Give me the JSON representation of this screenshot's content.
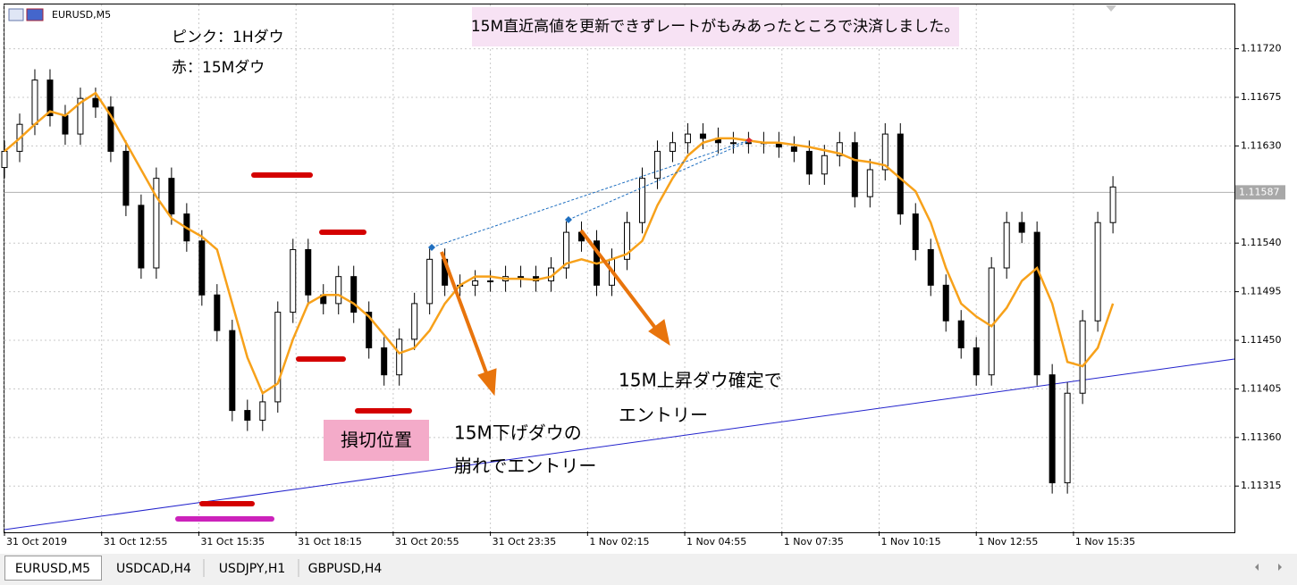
{
  "chart_data": {
    "type": "candlestick",
    "symbol": "EURUSD,M5",
    "x": [
      0,
      5,
      10,
      15,
      20,
      25,
      30,
      35,
      40,
      45,
      50,
      55,
      60,
      65,
      70,
      75,
      80,
      85,
      90,
      95,
      100,
      105,
      110,
      115,
      120,
      125,
      130,
      135,
      140,
      145,
      150,
      155,
      160,
      165,
      170,
      175,
      180,
      185,
      190,
      195,
      200,
      205,
      210,
      215,
      220,
      225,
      230,
      235,
      240,
      245,
      250,
      255,
      260,
      265,
      270,
      275,
      280,
      285,
      290,
      295,
      300,
      305,
      310,
      315,
      320,
      325,
      330,
      335,
      340,
      345,
      350,
      355,
      360,
      365
    ],
    "open": [
      1.1161,
      1.11625,
      1.1165,
      1.11691,
      1.11658,
      1.11641,
      1.11674,
      1.11666,
      1.11625,
      1.11575,
      1.11517,
      1.116,
      1.11567,
      1.11542,
      1.11492,
      1.11459,
      1.11385,
      1.11376,
      1.11393,
      1.11476,
      1.11534,
      1.11492,
      1.11484,
      1.11509,
      1.11476,
      1.11443,
      1.11418,
      1.11451,
      1.11484,
      1.11525,
      1.11501,
      1.11501,
      1.11505,
      1.11505,
      1.11509,
      1.11509,
      1.11505,
      1.11517,
      1.1155,
      1.11542,
      1.11501,
      1.11525,
      1.11559,
      1.116,
      1.11625,
      1.11633,
      1.11641,
      1.11637,
      1.11633,
      1.11633,
      1.11633,
      1.11633,
      1.11629,
      1.11625,
      1.11604,
      1.11621,
      1.11633,
      1.11583,
      1.11608,
      1.11641,
      1.11567,
      1.11534,
      1.11501,
      1.11468,
      1.11443,
      1.11418,
      1.11517,
      1.11559,
      1.1155,
      1.11418,
      1.11318,
      1.11401,
      1.11468,
      1.11559
    ],
    "high": [
      1.11635,
      1.1166,
      1.11701,
      1.11701,
      1.11668,
      1.11684,
      1.11684,
      1.11676,
      1.11635,
      1.11585,
      1.1161,
      1.1161,
      1.11577,
      1.11552,
      1.11502,
      1.11469,
      1.11395,
      1.11403,
      1.11486,
      1.11544,
      1.11544,
      1.11502,
      1.11519,
      1.11519,
      1.11486,
      1.11453,
      1.11461,
      1.11494,
      1.11535,
      1.11535,
      1.11511,
      1.11515,
      1.11515,
      1.11519,
      1.11519,
      1.11519,
      1.11527,
      1.1156,
      1.1156,
      1.11552,
      1.11535,
      1.11569,
      1.1161,
      1.11635,
      1.11643,
      1.11651,
      1.11651,
      1.11647,
      1.11643,
      1.11643,
      1.11643,
      1.11643,
      1.11639,
      1.11635,
      1.11631,
      1.11643,
      1.11643,
      1.11618,
      1.11651,
      1.11651,
      1.11577,
      1.11544,
      1.11511,
      1.11478,
      1.11453,
      1.11527,
      1.11569,
      1.11569,
      1.1156,
      1.11428,
      1.11411,
      1.11478,
      1.11569,
      1.11602
    ],
    "low": [
      1.116,
      1.11615,
      1.1164,
      1.11648,
      1.11631,
      1.11631,
      1.11656,
      1.11615,
      1.11565,
      1.11507,
      1.11507,
      1.11557,
      1.11532,
      1.11482,
      1.11449,
      1.11375,
      1.11366,
      1.11366,
      1.11383,
      1.11466,
      1.11482,
      1.11474,
      1.11474,
      1.11466,
      1.11433,
      1.11408,
      1.11408,
      1.11441,
      1.11474,
      1.11491,
      1.11491,
      1.11491,
      1.11495,
      1.11495,
      1.11499,
      1.11495,
      1.11495,
      1.11507,
      1.11532,
      1.11491,
      1.11491,
      1.11515,
      1.11549,
      1.1159,
      1.11615,
      1.11623,
      1.11627,
      1.11623,
      1.11623,
      1.11623,
      1.11623,
      1.11619,
      1.11615,
      1.11594,
      1.11594,
      1.11611,
      1.11573,
      1.11573,
      1.11598,
      1.11557,
      1.11524,
      1.11491,
      1.11458,
      1.11433,
      1.11408,
      1.11408,
      1.11507,
      1.1154,
      1.11408,
      1.11308,
      1.11308,
      1.11391,
      1.11458,
      1.11549
    ],
    "close": [
      1.11625,
      1.1165,
      1.11691,
      1.11658,
      1.11641,
      1.11674,
      1.11666,
      1.11625,
      1.11575,
      1.11517,
      1.116,
      1.11567,
      1.11542,
      1.11492,
      1.11459,
      1.11385,
      1.11376,
      1.11393,
      1.11476,
      1.11534,
      1.11492,
      1.11484,
      1.11509,
      1.11476,
      1.11443,
      1.11418,
      1.11451,
      1.11484,
      1.11525,
      1.11501,
      1.11501,
      1.11505,
      1.11505,
      1.11509,
      1.11509,
      1.11505,
      1.11517,
      1.1155,
      1.11542,
      1.11501,
      1.11525,
      1.11559,
      1.116,
      1.11625,
      1.11633,
      1.11641,
      1.11637,
      1.11633,
      1.11633,
      1.11633,
      1.11633,
      1.11629,
      1.11625,
      1.11604,
      1.11621,
      1.11633,
      1.11583,
      1.11608,
      1.11641,
      1.11567,
      1.11534,
      1.11501,
      1.11468,
      1.11443,
      1.11418,
      1.11517,
      1.11559,
      1.1155,
      1.11418,
      1.11318,
      1.11401,
      1.11468,
      1.11559,
      1.11592
    ],
    "up_color": "#ffffff",
    "down_color": "#000000",
    "ma": {
      "color": "#f7a11a",
      "values": [
        1.11625,
        1.11637,
        1.1165,
        1.11662,
        1.11658,
        1.1167,
        1.11679,
        1.11658,
        1.11633,
        1.11608,
        1.11583,
        1.11563,
        1.11554,
        1.11546,
        1.11534,
        1.11484,
        1.11434,
        1.11401,
        1.1141,
        1.11451,
        1.11484,
        1.11492,
        1.11492,
        1.11484,
        1.11472,
        1.11455,
        1.11438,
        1.11443,
        1.11459,
        1.11484,
        1.11501,
        1.11509,
        1.11509,
        1.11507,
        1.11507,
        1.11506,
        1.11509,
        1.11521,
        1.11525,
        1.11521,
        1.11525,
        1.1153,
        1.11542,
        1.11575,
        1.116,
        1.11621,
        1.11633,
        1.11637,
        1.11637,
        1.11635,
        1.11633,
        1.11633,
        1.11631,
        1.11629,
        1.11626,
        1.11623,
        1.11617,
        1.11615,
        1.11612,
        1.116,
        1.11588,
        1.11559,
        1.11517,
        1.11484,
        1.11472,
        1.11463,
        1.1148,
        1.11505,
        1.11517,
        1.11484,
        1.1143,
        1.11426,
        1.11443,
        1.11484
      ]
    },
    "current_price": 1.11587,
    "xlim": [
      0,
      405
    ],
    "xticks": [
      {
        "value": 0,
        "label": "31 Oct 2019"
      },
      {
        "value": 32,
        "label": "31 Oct 12:55"
      },
      {
        "value": 64,
        "label": "31 Oct 15:35"
      },
      {
        "value": 96,
        "label": "31 Oct 18:15"
      },
      {
        "value": 128,
        "label": "31 Oct 20:55"
      },
      {
        "value": 160,
        "label": "31 Oct 23:35"
      },
      {
        "value": 192,
        "label": "1 Nov 02:15"
      },
      {
        "value": 224,
        "label": "1 Nov 04:55"
      },
      {
        "value": 256,
        "label": "1 Nov 07:35"
      },
      {
        "value": 288,
        "label": "1 Nov 10:15"
      },
      {
        "value": 320,
        "label": "1 Nov 12:55"
      },
      {
        "value": 352,
        "label": "1 Nov 15:35"
      }
    ],
    "ylim": [
      1.11273,
      1.11761
    ],
    "yticks": [
      {
        "value": 1.1172,
        "label": "1.11720"
      },
      1.11675,
      {
        "value": 1.1163,
        "label": "1.11630"
      },
      {
        "value": 1.1154,
        "label": "1.11540"
      },
      1.11495,
      {
        "value": 1.1145,
        "label": "1.11450"
      },
      1.11405,
      {
        "value": 1.1136,
        "label": "1.11360"
      },
      1.11315
    ],
    "grid": true,
    "annotations": {
      "top_note": "15M直近高値を更新できずレートがもみあったところで決済しました。",
      "legend_pink": "ピンク：1Hダウ",
      "legend_red": "赤：15Mダウ",
      "stop_loss": "損切位置",
      "entry1_line1": "15M下げダウの",
      "entry1_line2": "崩れでエントリー",
      "entry2_line1": "15M上昇ダウ確定で",
      "entry2_line2": "エントリー"
    }
  },
  "tabs": [
    "EURUSD,M5",
    "USDCAD,H4",
    "USDJPY,H1",
    "GBPUSD,H4"
  ]
}
